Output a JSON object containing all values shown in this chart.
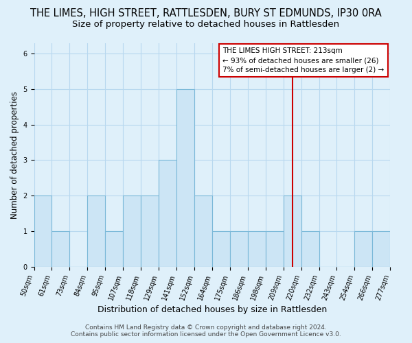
{
  "title": "THE LIMES, HIGH STREET, RATTLESDEN, BURY ST EDMUNDS, IP30 0RA",
  "subtitle": "Size of property relative to detached houses in Rattlesden",
  "xlabel": "Distribution of detached houses by size in Rattlesden",
  "ylabel": "Number of detached properties",
  "bar_labels": [
    "50sqm",
    "61sqm",
    "73sqm",
    "84sqm",
    "95sqm",
    "107sqm",
    "118sqm",
    "129sqm",
    "141sqm",
    "152sqm",
    "164sqm",
    "175sqm",
    "186sqm",
    "198sqm",
    "209sqm",
    "220sqm",
    "232sqm",
    "243sqm",
    "254sqm",
    "266sqm",
    "277sqm"
  ],
  "bar_heights": [
    2,
    1,
    0,
    2,
    1,
    2,
    2,
    3,
    5,
    2,
    1,
    1,
    1,
    1,
    2,
    1,
    0,
    0,
    1,
    1
  ],
  "bar_color": "#cce5f5",
  "bar_edge_color": "#7ab8d8",
  "grid_color": "#b8d8ef",
  "bg_color": "#dff0fa",
  "vline_color": "#cc0000",
  "vline_pos": 14.5,
  "annotation_title": "THE LIMES HIGH STREET: 213sqm",
  "annotation_line1": "← 93% of detached houses are smaller (26)",
  "annotation_line2": "7% of semi-detached houses are larger (2) →",
  "annotation_box_color": "#cc0000",
  "footer1": "Contains HM Land Registry data © Crown copyright and database right 2024.",
  "footer2": "Contains public sector information licensed under the Open Government Licence v3.0.",
  "ylim": [
    0,
    6.3
  ],
  "yticks": [
    0,
    1,
    2,
    3,
    4,
    5,
    6
  ],
  "title_fontsize": 10.5,
  "subtitle_fontsize": 9.5,
  "xlabel_fontsize": 9,
  "ylabel_fontsize": 8.5,
  "tick_fontsize": 7,
  "annotation_fontsize": 7.5,
  "footer_fontsize": 6.5
}
